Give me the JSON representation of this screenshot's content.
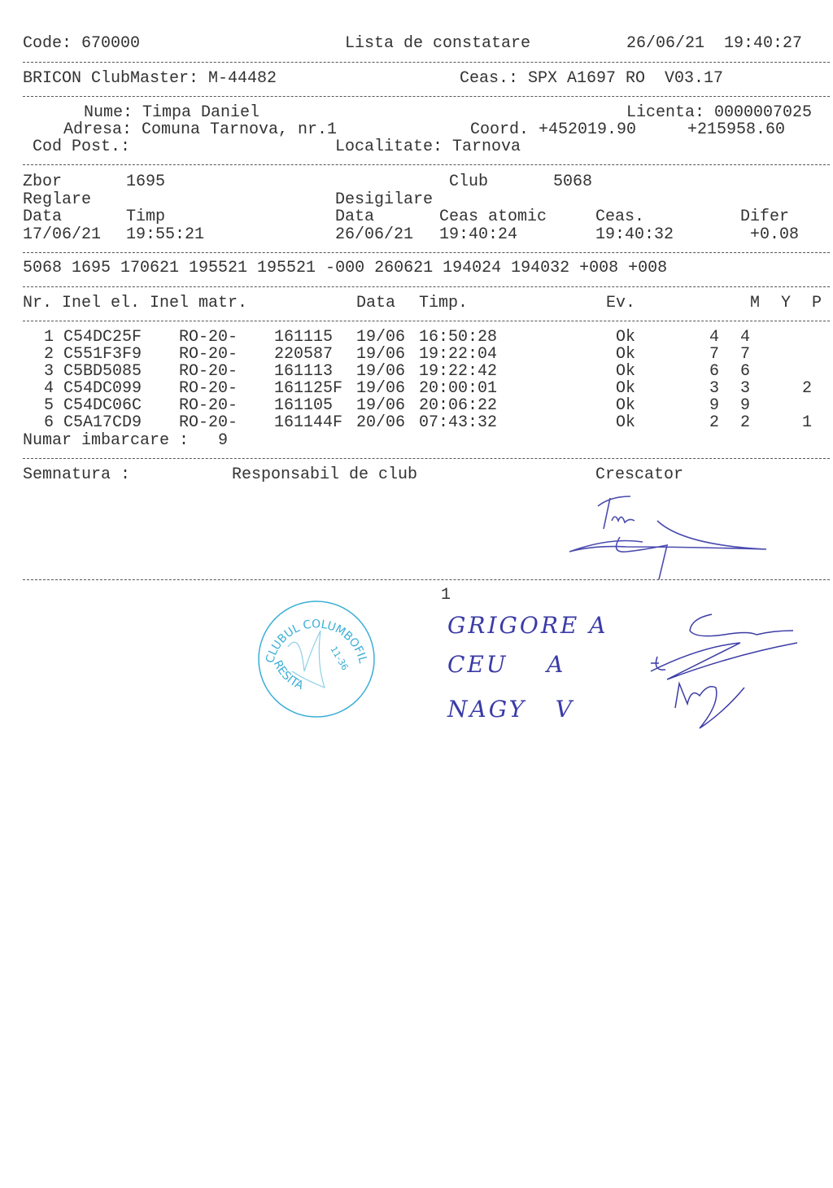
{
  "header": {
    "code": "Code: 670000",
    "title": "Lista de constatare",
    "datetime": "26/06/21  19:40:27",
    "clubmaster": "BRICON ClubMaster: M-44482",
    "clock": "Ceas.: SPX A1697 RO  V03.17"
  },
  "fancier": {
    "name": "Nume: Timpa Daniel",
    "license": "Licenta: 0000007025",
    "address": "Adresa: Comuna Tarnova, nr.1",
    "coord_label": "Coord. +452019.90",
    "coord2": "+215958.60",
    "postal": "Cod Post.:",
    "locality": "Localitate: Tarnova"
  },
  "flight": {
    "zbor_label": "Zbor",
    "zbor": "1695",
    "club_label": "Club",
    "club": "5068",
    "reglare": "Reglare",
    "desigilare": "Desigilare",
    "h_data": "Data",
    "h_timp": "Timp",
    "h_data2": "Data",
    "h_atomic": "Ceas atomic",
    "h_ceas": "Ceas.",
    "h_difer": "Difer",
    "v_data": "17/06/21",
    "v_timp": "19:55:21",
    "v_data2": "26/06/21",
    "v_atomic": "19:40:24",
    "v_ceas": "19:40:32",
    "v_difer": "+0.08",
    "code_line": "5068 1695 170621 195521 195521 -000 260621 194024 194032 +008 +008"
  },
  "table": {
    "headers": {
      "nr_inel": "Nr. Inel el. Inel matr.",
      "data": "Data",
      "timp": "Timp.",
      "ev": "Ev.",
      "m": "M",
      "y": "Y",
      "p": "P"
    },
    "rows": [
      {
        "nr": "1",
        "inel": "C54DC25F",
        "pref": "RO-20-",
        "matr": "161115",
        "data": "19/06",
        "timp": "16:50:28",
        "ev": "Ok",
        "m": "4",
        "y": "4",
        "p": ""
      },
      {
        "nr": "2",
        "inel": "C551F3F9",
        "pref": "RO-20-",
        "matr": "220587",
        "data": "19/06",
        "timp": "19:22:04",
        "ev": "Ok",
        "m": "7",
        "y": "7",
        "p": ""
      },
      {
        "nr": "3",
        "inel": "C5BD5085",
        "pref": "RO-20-",
        "matr": "161113",
        "data": "19/06",
        "timp": "19:22:42",
        "ev": "Ok",
        "m": "6",
        "y": "6",
        "p": ""
      },
      {
        "nr": "4",
        "inel": "C54DC099",
        "pref": "RO-20-",
        "matr": "161125F",
        "data": "19/06",
        "timp": "20:00:01",
        "ev": "Ok",
        "m": "3",
        "y": "3",
        "p": "2"
      },
      {
        "nr": "5",
        "inel": "C54DC06C",
        "pref": "RO-20-",
        "matr": "161105",
        "data": "19/06",
        "timp": "20:06:22",
        "ev": "Ok",
        "m": "9",
        "y": "9",
        "p": ""
      },
      {
        "nr": "6",
        "inel": "C5A17CD9",
        "pref": "RO-20-",
        "matr": "161144F",
        "data": "20/06",
        "timp": "07:43:32",
        "ev": "Ok",
        "m": "2",
        "y": "2",
        "p": "1"
      }
    ],
    "total": "Numar imbarcare :   9"
  },
  "signatures": {
    "label": "Semnatura :",
    "club_resp": "Responsabil de club",
    "breeder": "Crescator",
    "page_number": "1",
    "handwritten": [
      "GRIGORE A",
      "CEU    A",
      "NAGY   V"
    ]
  },
  "stamp": {
    "top": "CLUBUL COLUMBOFIL",
    "bottom": "RESITA",
    "number": "11-36",
    "color": "#3aaed6"
  },
  "colors": {
    "ink": "#3b3ba6",
    "text": "#333333"
  }
}
